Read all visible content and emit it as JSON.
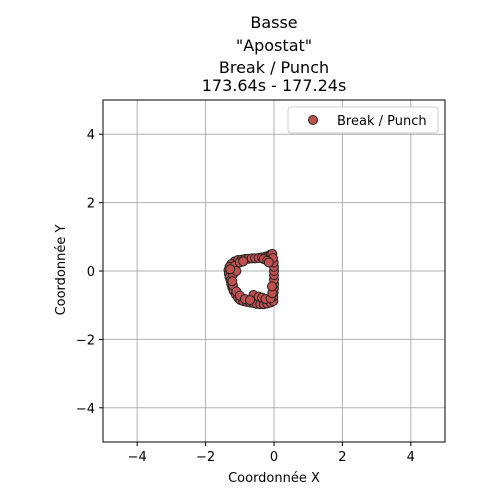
{
  "chart_data": {
    "type": "scatter",
    "title_lines": [
      "Basse",
      "\"Apostat\"",
      "Break / Punch",
      "173.64s - 177.24s"
    ],
    "xlabel": "Coordonnée X",
    "ylabel": "Coordonnée Y",
    "xlim": [
      -5,
      5
    ],
    "ylim": [
      -5,
      5
    ],
    "xticks": [
      -4,
      -2,
      0,
      2,
      4
    ],
    "yticks": [
      -4,
      -2,
      0,
      2,
      4
    ],
    "xtick_labels": [
      "−4",
      "−2",
      "0",
      "2",
      "4"
    ],
    "ytick_labels": [
      "−4",
      "−2",
      "0",
      "2",
      "4"
    ],
    "grid": true,
    "legend_position": "upper-right",
    "series": [
      {
        "name": "Break / Punch",
        "color": "#c0504d",
        "edge_color": "#222222",
        "points": [
          [
            -1.15,
            0.28
          ],
          [
            -1.05,
            0.32
          ],
          [
            -0.95,
            0.33
          ],
          [
            -0.85,
            0.35
          ],
          [
            -0.75,
            0.36
          ],
          [
            -0.65,
            0.37
          ],
          [
            -0.55,
            0.37
          ],
          [
            -0.45,
            0.38
          ],
          [
            -0.35,
            0.4
          ],
          [
            -0.25,
            0.42
          ],
          [
            -0.15,
            0.45
          ],
          [
            -0.1,
            0.48
          ],
          [
            -0.05,
            0.5
          ],
          [
            -1.25,
            0.2
          ],
          [
            -1.3,
            0.12
          ],
          [
            -1.33,
            0.02
          ],
          [
            -1.32,
            -0.08
          ],
          [
            -1.3,
            -0.18
          ],
          [
            -1.27,
            -0.28
          ],
          [
            -1.25,
            -0.38
          ],
          [
            -1.22,
            -0.48
          ],
          [
            -1.18,
            -0.58
          ],
          [
            -1.12,
            -0.68
          ],
          [
            -1.05,
            -0.78
          ],
          [
            -0.98,
            -0.85
          ],
          [
            -0.9,
            -0.88
          ],
          [
            -0.8,
            -0.9
          ],
          [
            -0.7,
            -0.92
          ],
          [
            -0.6,
            -0.94
          ],
          [
            -0.5,
            -0.96
          ],
          [
            -0.4,
            -0.97
          ],
          [
            -0.3,
            -0.97
          ],
          [
            -0.2,
            -0.95
          ],
          [
            -0.1,
            -0.92
          ],
          [
            -0.02,
            -0.88
          ],
          [
            -0.02,
            -0.75
          ],
          [
            -0.01,
            -0.62
          ],
          [
            0.0,
            -0.5
          ],
          [
            0.0,
            -0.38
          ],
          [
            0.0,
            -0.25
          ],
          [
            0.0,
            -0.12
          ],
          [
            0.0,
            0.0
          ],
          [
            0.0,
            0.12
          ],
          [
            -0.01,
            0.25
          ],
          [
            -0.03,
            0.38
          ],
          [
            -1.2,
            -0.1
          ],
          [
            -1.15,
            0.15
          ],
          [
            -1.1,
            0.0
          ],
          [
            -1.0,
            0.25
          ],
          [
            -0.9,
            0.28
          ],
          [
            -0.3,
            0.35
          ],
          [
            -0.2,
            0.3
          ],
          [
            -0.15,
            0.25
          ],
          [
            -0.6,
            -0.7
          ],
          [
            -0.45,
            -0.75
          ],
          [
            -0.35,
            -0.78
          ],
          [
            -0.25,
            -0.82
          ],
          [
            -0.1,
            -0.8
          ],
          [
            -0.05,
            -0.65
          ],
          [
            -0.06,
            -0.45
          ],
          [
            -1.2,
            -0.42
          ],
          [
            -1.1,
            -0.6
          ],
          [
            -1.0,
            -0.72
          ],
          [
            -0.85,
            -0.82
          ],
          [
            -0.7,
            -0.85
          ],
          [
            -1.22,
            -0.3
          ],
          [
            -1.28,
            0.05
          ]
        ]
      }
    ]
  }
}
